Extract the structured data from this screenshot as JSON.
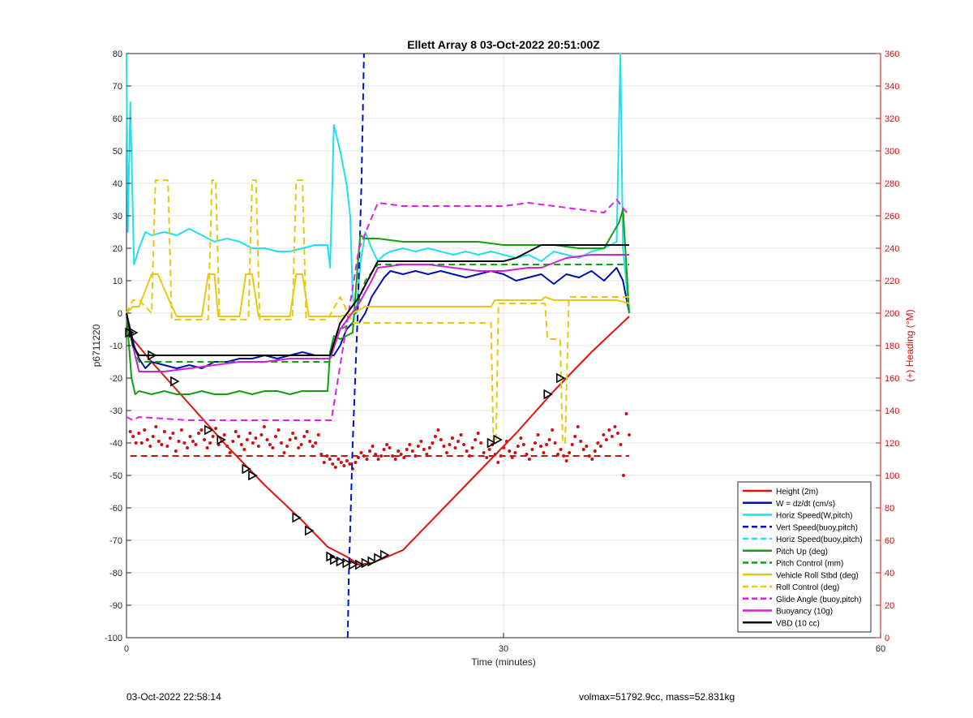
{
  "footer": {
    "timestamp": "03-Oct-2022 22:58:14",
    "vol_mass": "volmax=51792.9cc, mass=52.831kg"
  },
  "chart_data": {
    "type": "line",
    "title": "Ellett Array 8 03-Oct-2022 20:51:00Z",
    "xlabel": "Time (minutes)",
    "ylabel": "p6711220",
    "y2label": "(+) Heading (°M)",
    "xlim": [
      0,
      60
    ],
    "ylim": [
      -100,
      80
    ],
    "y2lim": [
      0,
      360
    ],
    "xticks": [
      0,
      30,
      60
    ],
    "yticks": [
      -100,
      -90,
      -80,
      -70,
      -60,
      -50,
      -40,
      -30,
      -20,
      -10,
      0,
      10,
      20,
      30,
      40,
      50,
      60,
      70,
      80
    ],
    "y2ticks": [
      0,
      20,
      40,
      60,
      80,
      100,
      120,
      140,
      160,
      180,
      200,
      220,
      240,
      260,
      280,
      300,
      320,
      340,
      360
    ],
    "grid": true,
    "legend_position": "bottom-right",
    "colors": {
      "height": "#e0140a",
      "w": "#0010b0",
      "horiz": "#20e0f0",
      "vert": "#0010d0",
      "pitch": "#10a010",
      "roll": "#e8c810",
      "glide": "#e020e0",
      "buoy": "#d020d8",
      "vbd": "#000000",
      "heading": "#d01010"
    },
    "series": [
      {
        "name": "Height (2m)",
        "key": "height",
        "style": "solid",
        "x": [
          0,
          0.5,
          2,
          5,
          8,
          11,
          14,
          16,
          17.5,
          18.5,
          19.5,
          20.5,
          22,
          25,
          28,
          31,
          34,
          37,
          40
        ],
        "y": [
          -5,
          -8,
          -15,
          -28,
          -41,
          -53,
          -64,
          -72,
          -75,
          -77.5,
          -77,
          -75.5,
          -73,
          -61,
          -49,
          -37,
          -24,
          -12,
          -1
        ]
      },
      {
        "name": "W = dz/dt (cm/s)",
        "key": "w",
        "style": "solid",
        "x": [
          0,
          0.3,
          0.6,
          1,
          1.5,
          2,
          3,
          4,
          5,
          6,
          7,
          8,
          9,
          10,
          11,
          12,
          13,
          14,
          15,
          16,
          16.5,
          17,
          17.5,
          18,
          18.5,
          19,
          19.5,
          20,
          20.5,
          21,
          22,
          23,
          24,
          25,
          26,
          27,
          28,
          29,
          30,
          31,
          32,
          33,
          34,
          35,
          36,
          37,
          38,
          39,
          39.5,
          40
        ],
        "y": [
          0,
          -5,
          -10,
          -14,
          -17,
          -15,
          -16,
          -17,
          -16,
          -17,
          -15,
          -15,
          -14,
          -14,
          -13,
          -14,
          -13,
          -12,
          -13,
          -13,
          -13,
          -10,
          -5,
          -3,
          -3,
          0,
          5,
          8,
          11,
          13,
          12,
          13,
          12,
          13,
          12,
          11,
          12,
          13,
          12,
          10,
          11,
          12,
          9,
          12,
          11,
          13,
          10,
          14,
          10,
          0
        ]
      },
      {
        "name": "Horiz Speed(W,pitch)",
        "key": "horiz",
        "style": "solid",
        "x": [
          0,
          0.1,
          0.3,
          0.6,
          1,
          1.5,
          2,
          3,
          4,
          5,
          6,
          7,
          8,
          9,
          10,
          11,
          12,
          13,
          14,
          15,
          16,
          16.2,
          16.5,
          17,
          17.5,
          17.8,
          18,
          18.3,
          18.6,
          19,
          19.5,
          20,
          20.5,
          21,
          22,
          23,
          24,
          25,
          26,
          27,
          28,
          29,
          30,
          31,
          32,
          33,
          34,
          35,
          36,
          37,
          38,
          39,
          39.3,
          39.5,
          40
        ],
        "y": [
          80,
          25,
          65,
          15,
          20,
          25,
          24,
          25,
          24,
          26,
          24,
          22,
          23,
          22,
          20,
          20,
          19,
          19,
          20,
          21,
          21,
          14,
          58,
          50,
          40,
          30,
          5,
          0,
          15,
          25,
          20,
          16,
          18,
          19,
          20,
          19,
          20,
          19,
          18,
          19,
          18,
          19,
          18,
          17,
          18,
          16,
          19,
          18,
          17,
          19,
          20,
          22,
          80,
          20,
          0
        ]
      },
      {
        "name": "Vert Speed(buoy,pitch)",
        "key": "vert",
        "style": "dashed",
        "x": [
          17.6,
          17.7,
          18.0,
          18.4,
          18.7,
          18.9
        ],
        "y": [
          -100,
          -80,
          -40,
          0,
          40,
          80
        ]
      },
      {
        "name": "Horiz Speed(buoy,pitch)",
        "key": "horiz",
        "style": "dashed",
        "x": [],
        "y": []
      },
      {
        "name": "Pitch Up (deg)",
        "key": "pitch",
        "style": "solid",
        "x": [
          0,
          0.4,
          0.7,
          1,
          2,
          3,
          4,
          5,
          6,
          7,
          8,
          9,
          10,
          11,
          12,
          13,
          14,
          15,
          16,
          16.2,
          16.5,
          17,
          18,
          18.4,
          18.6,
          19,
          20,
          22,
          24,
          26,
          28,
          30,
          32,
          34,
          36,
          38,
          39.2,
          39.5,
          40
        ],
        "y": [
          0,
          -20,
          -25,
          -24,
          -25,
          -24,
          -25,
          -25,
          -24,
          -25,
          -25,
          -24,
          -25,
          -24,
          -24,
          -25,
          -24,
          -24,
          -24,
          -12,
          -7,
          -8,
          -6,
          15,
          24,
          23,
          23,
          22,
          22,
          22,
          22,
          21,
          21,
          21,
          20,
          20,
          28,
          32,
          0
        ]
      },
      {
        "name": "Pitch Control (mm)",
        "key": "pitch",
        "style": "dashed",
        "x": [
          0,
          0.5,
          1,
          16.2,
          16.5,
          17,
          18,
          18.4,
          18.6,
          19,
          20,
          40
        ],
        "y": [
          -1,
          -10,
          -15,
          -15,
          -10,
          -5,
          -3,
          3,
          5,
          10,
          15,
          15
        ]
      },
      {
        "name": "Vehicle Roll Stbd (deg)",
        "key": "roll",
        "style": "solid",
        "x": [
          0,
          0.5,
          1,
          2,
          2.5,
          3.5,
          4,
          5,
          6,
          6.5,
          7,
          7.3,
          8,
          9,
          9.5,
          10,
          10.5,
          11,
          12,
          13,
          13.5,
          14,
          14.5,
          15,
          16,
          17,
          18,
          19,
          20,
          25,
          29,
          29.3,
          33,
          33.3,
          34,
          35,
          36,
          37,
          38,
          39,
          40
        ],
        "y": [
          0,
          2,
          2,
          12,
          12,
          3,
          -1,
          -1,
          -1,
          12,
          12,
          -1,
          -1,
          -1,
          12,
          12,
          -1,
          -1,
          -1,
          -1,
          12,
          12,
          -1,
          -1,
          -1,
          -1,
          0,
          2,
          2,
          2,
          2,
          4,
          4,
          5,
          4,
          4,
          4,
          4,
          4,
          4,
          3
        ]
      },
      {
        "name": "Roll Control (deg)",
        "key": "roll",
        "style": "dashed",
        "x": [
          0,
          0.5,
          1,
          2,
          2.3,
          3.3,
          3.6,
          6.5,
          6.8,
          7.1,
          7.4,
          9.7,
          10,
          10.3,
          10.6,
          13.2,
          13.5,
          14,
          14.3,
          16,
          17,
          18,
          19,
          29,
          29.2,
          29.4,
          29.6,
          33.3,
          33.5,
          34.5,
          34.7,
          34.9,
          35.2,
          40
        ],
        "y": [
          0,
          4,
          4,
          0,
          41,
          41,
          -2,
          -2,
          41,
          41,
          -2,
          -2,
          41,
          41,
          -2,
          -2,
          41,
          41,
          -2,
          -2,
          5,
          -3,
          -3,
          -3,
          -40,
          -40,
          3,
          3,
          -8,
          -8,
          -40,
          -40,
          5,
          5
        ]
      },
      {
        "name": "Glide Angle (buoy,pitch)",
        "key": "glide",
        "style": "dashed",
        "x": [
          0,
          0.5,
          1,
          5,
          10,
          15,
          16.3,
          18.5,
          20,
          22,
          25,
          28,
          30,
          32,
          34,
          36,
          38,
          39,
          40
        ],
        "y": [
          -32,
          -33,
          -32,
          -33,
          -33,
          -33,
          -33,
          20,
          34,
          33,
          33,
          33,
          33,
          34,
          33,
          32,
          31,
          35,
          30
        ]
      },
      {
        "name": "Buoyancy (10g)",
        "key": "buoy",
        "style": "solid",
        "x": [
          0,
          0.5,
          1,
          3,
          5,
          7,
          9,
          11,
          13,
          15,
          16.2,
          17,
          18.5,
          19.5,
          20,
          22,
          24,
          26,
          28,
          30,
          32,
          33,
          35,
          37,
          38,
          39,
          40
        ],
        "y": [
          0,
          -10,
          -18,
          -18,
          -17,
          -16,
          -15,
          -15,
          -14,
          -14,
          -14,
          -5,
          3,
          10,
          14,
          15,
          15,
          14,
          13,
          13,
          14,
          14,
          17,
          18,
          18,
          18,
          18
        ]
      },
      {
        "name": "VBD (10 cc)",
        "key": "vbd",
        "style": "solid",
        "x": [
          0,
          0.5,
          1,
          16.2,
          17,
          18.5,
          20,
          22,
          30,
          31,
          32,
          33,
          34,
          40
        ],
        "y": [
          0,
          -10,
          -13,
          -13,
          -3,
          5,
          16,
          16,
          16,
          17,
          19,
          21,
          21,
          21
        ]
      }
    ],
    "heading": {
      "axis": "y2",
      "fixed_level": 112,
      "y": [
        127,
        124,
        120,
        126,
        120,
        128,
        122,
        118,
        124,
        130,
        121,
        119,
        127,
        118,
        123,
        126,
        115,
        121,
        128,
        120,
        117,
        124,
        121,
        119,
        126,
        128,
        122,
        117,
        120,
        124,
        129,
        119,
        121,
        125,
        118,
        114,
        121,
        127,
        124,
        119,
        116,
        122,
        126,
        120,
        123,
        118,
        125,
        130,
        122,
        119,
        117,
        124,
        128,
        120,
        114,
        118,
        122,
        126,
        123,
        117,
        119,
        124,
        127,
        121,
        118,
        120,
        125,
        113,
        108,
        112,
        110,
        107,
        105,
        110,
        108,
        106,
        109,
        107,
        104,
        108,
        111,
        114,
        112,
        110,
        115,
        118,
        113,
        110,
        112,
        116,
        119,
        117,
        112,
        110,
        115,
        113,
        111,
        116,
        119,
        115,
        112,
        118,
        121,
        116,
        113,
        117,
        120,
        124,
        128,
        122,
        118,
        114,
        119,
        123,
        117,
        121,
        125,
        119,
        115,
        112,
        117,
        122,
        126,
        120,
        114,
        111,
        116,
        119,
        113,
        108,
        112,
        117,
        121,
        115,
        111,
        114,
        118,
        123,
        119,
        113,
        110,
        116,
        120,
        125,
        118,
        114,
        119,
        122,
        128,
        120,
        113,
        116,
        112,
        109,
        114,
        119,
        124,
        130,
        121,
        116,
        118,
        112,
        110,
        115,
        120,
        118,
        125,
        122,
        128,
        124,
        130,
        126,
        119,
        100,
        138,
        125
      ]
    },
    "markers": {
      "x": [
        0.2,
        0.5,
        2,
        3.8,
        6.5,
        7.5,
        9.5,
        10,
        13.5,
        14.5,
        16.2,
        16.5,
        17,
        17.5,
        18,
        18.5,
        19,
        19.5,
        20,
        20.5,
        29,
        29.5,
        33.5,
        34.5
      ],
      "y": [
        -6,
        -6,
        -13,
        -21,
        -36,
        -39,
        -48,
        -50,
        -63,
        -67,
        -75,
        -76,
        -76.5,
        -77,
        -77.5,
        -77.5,
        -77,
        -76.5,
        -75.5,
        -74.5,
        -40,
        -39,
        -25,
        -20
      ]
    }
  }
}
